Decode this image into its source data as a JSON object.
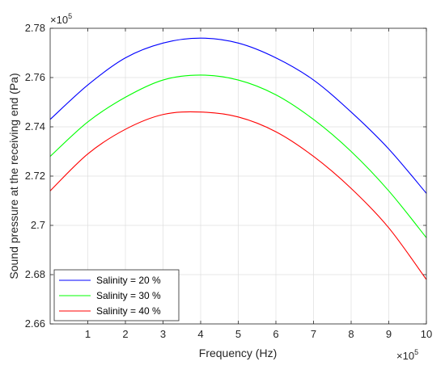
{
  "chart_data": {
    "type": "line",
    "title": "",
    "xlabel": "Frequency (Hz)",
    "ylabel": "Sound pressure at the receiving end (Pa)",
    "x_exponent": {
      "base": "×10",
      "power": "5"
    },
    "y_exponent": {
      "base": "×10",
      "power": "5"
    },
    "xlim": [
      0,
      1000000
    ],
    "ylim": [
      266000,
      278000
    ],
    "x_ticks": [
      100000,
      200000,
      300000,
      400000,
      500000,
      600000,
      700000,
      800000,
      900000,
      1000000
    ],
    "x_tick_labels": [
      "1",
      "2",
      "3",
      "4",
      "5",
      "6",
      "7",
      "8",
      "9",
      "10"
    ],
    "y_ticks": [
      266000,
      268000,
      270000,
      272000,
      274000,
      276000,
      278000
    ],
    "y_tick_labels": [
      "2.66",
      "2.68",
      "2.7",
      "2.72",
      "2.74",
      "2.76",
      "2.78"
    ],
    "grid": true,
    "legend_position": "bottom-left",
    "x": [
      0,
      100000,
      200000,
      300000,
      400000,
      500000,
      600000,
      700000,
      800000,
      900000,
      1000000
    ],
    "series": [
      {
        "name": "Salinity = 20 %",
        "color": "#0000ff",
        "values": [
          274300,
          275700,
          276800,
          277400,
          277600,
          277400,
          276800,
          275900,
          274600,
          273100,
          271300
        ]
      },
      {
        "name": "Salinity = 30 %",
        "color": "#00ff00",
        "values": [
          272800,
          274200,
          275200,
          275900,
          276100,
          275900,
          275300,
          274300,
          273000,
          271400,
          269500
        ]
      },
      {
        "name": "Salinity = 40 %",
        "color": "#ff0000",
        "values": [
          271400,
          272900,
          273900,
          274500,
          274600,
          274400,
          273800,
          272800,
          271500,
          269900,
          267800
        ]
      }
    ]
  }
}
